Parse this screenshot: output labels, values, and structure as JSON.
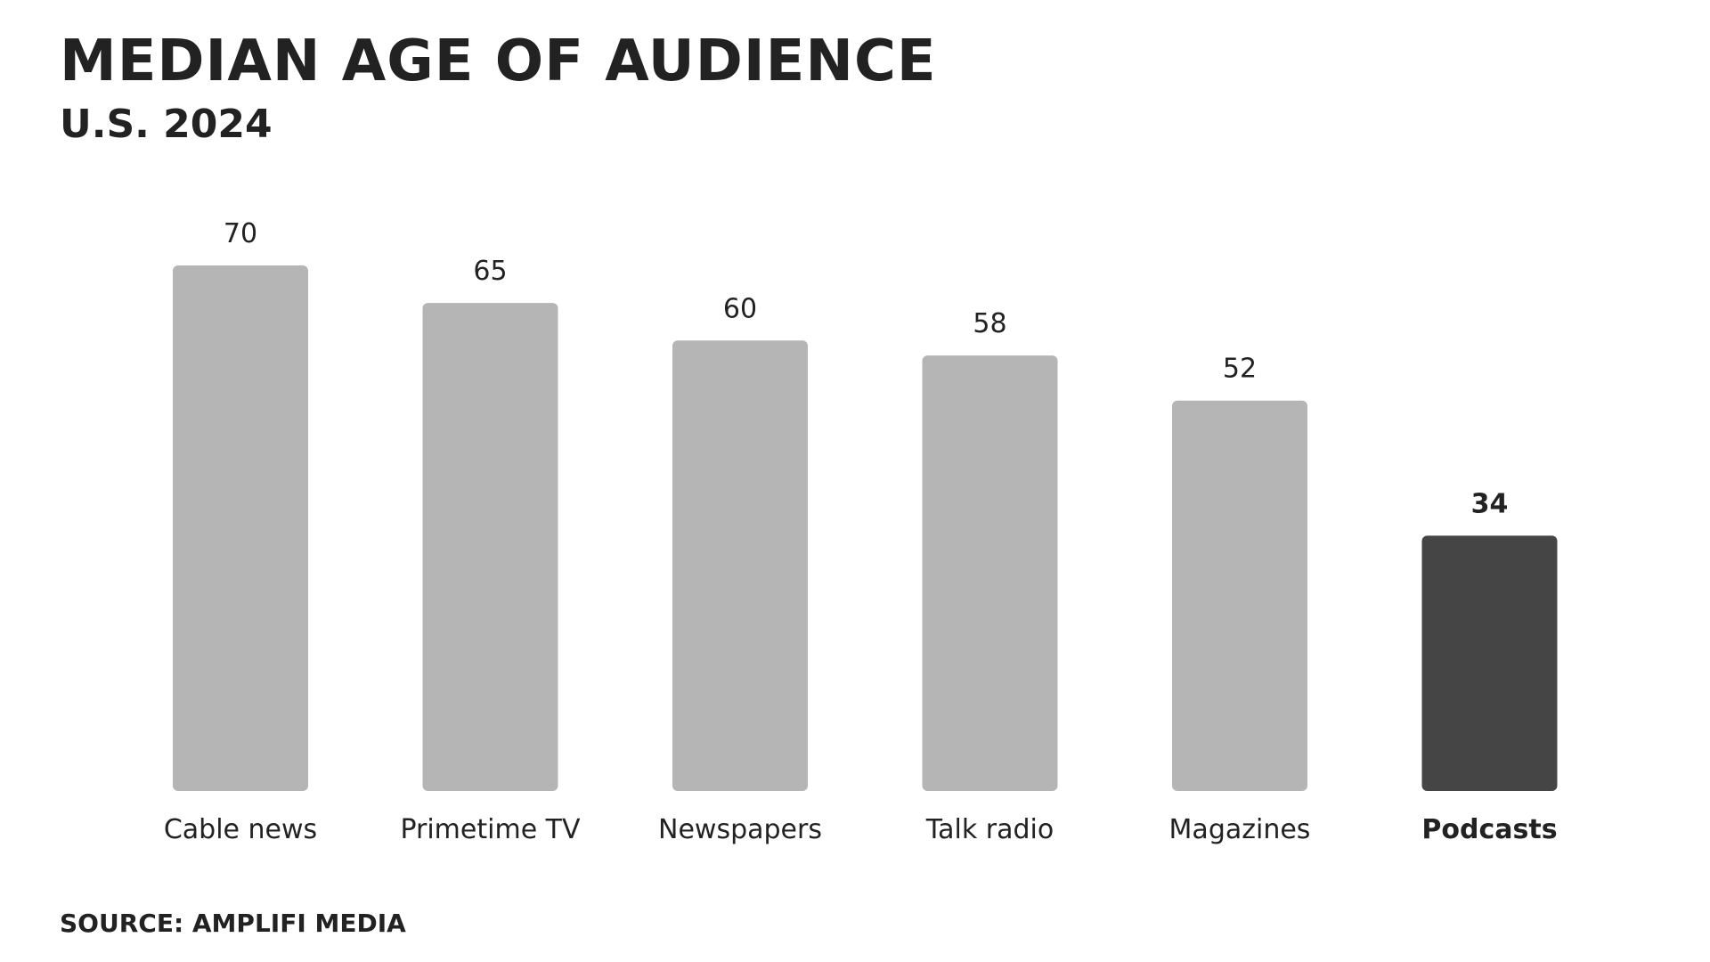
{
  "header": {
    "title": "MEDIAN AGE OF AUDIENCE",
    "subtitle": "U.S. 2024"
  },
  "footer": {
    "source": "SOURCE: AMPLIFI MEDIA"
  },
  "colors": {
    "bar": "#b6b5b6",
    "highlight_bar": "#454545",
    "text": "#222222"
  },
  "chart_data": {
    "type": "bar",
    "title": "MEDIAN AGE OF AUDIENCE",
    "subtitle": "U.S. 2024",
    "categories": [
      "Cable news",
      "Primetime TV",
      "Newspapers",
      "Talk radio",
      "Magazines",
      "Podcasts"
    ],
    "values": [
      70,
      65,
      60,
      58,
      52,
      34
    ],
    "highlight": "Podcasts",
    "xlabel": "",
    "ylabel": "",
    "ylim": [
      0,
      70
    ],
    "grid": false,
    "legend": "none"
  }
}
